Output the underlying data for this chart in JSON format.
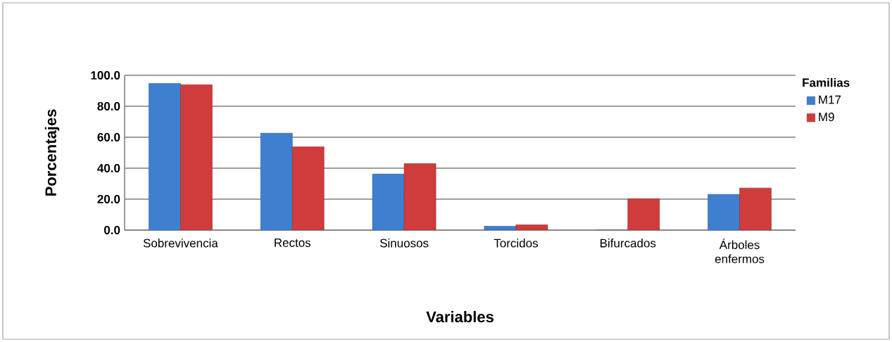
{
  "chart_data": {
    "type": "bar",
    "xlabel": "Variables",
    "ylabel": "Porcentajes",
    "legend_title": "Familias",
    "categories": [
      "Sobrevivencia",
      "Rectos",
      "Sinuosos",
      "Torcidos",
      "Bifurcados",
      "Árboles enfermos"
    ],
    "series": [
      {
        "name": "M17",
        "color": "#3f7fd0",
        "values": [
          94.8,
          62.6,
          36.2,
          2.5,
          0,
          23.1
        ]
      },
      {
        "name": "M9",
        "color": "#d03c3c",
        "values": [
          93.9,
          53.8,
          42.9,
          3.4,
          20.2,
          27.2
        ]
      }
    ],
    "ylim": [
      0,
      100
    ],
    "yticks": [
      {
        "value": 0,
        "label": "0.0"
      },
      {
        "value": 20,
        "label": "20.0"
      },
      {
        "value": 40,
        "label": "40.0"
      },
      {
        "value": 60,
        "label": "60.0"
      },
      {
        "value": 80,
        "label": "80.0"
      },
      {
        "value": 100,
        "label": "100.0"
      }
    ],
    "grid": "y",
    "legend": "top right"
  }
}
